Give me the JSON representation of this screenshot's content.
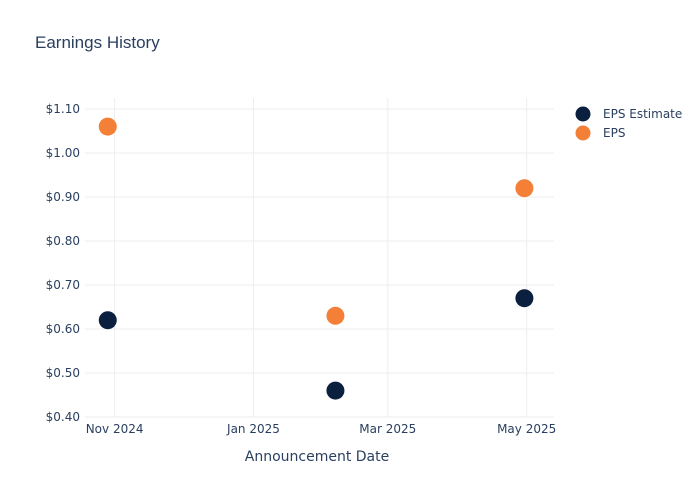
{
  "chart_data": {
    "type": "scatter",
    "title": "Earnings History",
    "xlabel": "Announcement Date",
    "ylabel": "",
    "x_ticks": [
      {
        "date": "2024-11-01",
        "label": "Nov 2024"
      },
      {
        "date": "2025-01-01",
        "label": "Jan 2025"
      },
      {
        "date": "2025-03-01",
        "label": "Mar 2025"
      },
      {
        "date": "2025-05-01",
        "label": "May 2025"
      }
    ],
    "y_ticks": [
      0.4,
      0.5,
      0.6,
      0.7,
      0.8,
      0.9,
      1.0,
      1.1
    ],
    "y_tick_format": "$0.00",
    "xlim": [
      "2024-10-19",
      "2025-05-13"
    ],
    "ylim": [
      0.4,
      1.125
    ],
    "grid": true,
    "legend_position": "top-right",
    "series": [
      {
        "name": "EPS Estimate",
        "color": "#0b1f3f",
        "points": [
          {
            "x": "2024-10-29",
            "y": 0.62
          },
          {
            "x": "2025-02-06",
            "y": 0.46
          },
          {
            "x": "2025-04-30",
            "y": 0.67
          }
        ]
      },
      {
        "name": "EPS",
        "color": "#f47f36",
        "points": [
          {
            "x": "2024-10-29",
            "y": 1.06
          },
          {
            "x": "2025-02-06",
            "y": 0.63
          },
          {
            "x": "2025-04-30",
            "y": 0.92
          }
        ]
      }
    ]
  }
}
